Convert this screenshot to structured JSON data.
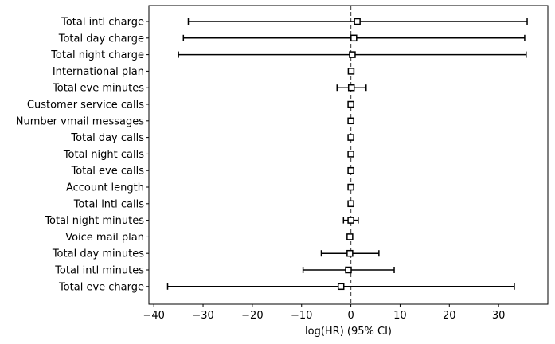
{
  "chart_data": {
    "type": "scatter",
    "title": "",
    "xlabel": "log(HR) (95% CI)",
    "ylabel": "",
    "xlim": [
      -41,
      40
    ],
    "xticks": [
      -40,
      -30,
      -20,
      -10,
      0,
      10,
      20,
      30
    ],
    "xtick_labels": [
      "−40",
      "−30",
      "−20",
      "−10",
      "0",
      "10",
      "20",
      "30"
    ],
    "reference_line": 0,
    "grid": false,
    "marker": "square",
    "series": [
      {
        "categories": [
          "Total intl charge",
          "Total day charge",
          "Total night charge",
          "International plan",
          "Total eve minutes",
          "Customer service calls",
          "Number vmail messages",
          "Total day calls",
          "Total night calls",
          "Total eve calls",
          "Account length",
          "Total intl calls",
          "Total night minutes",
          "Voice mail plan",
          "Total day minutes",
          "Total intl minutes",
          "Total eve charge"
        ],
        "estimate": [
          1.3,
          0.6,
          0.3,
          0.05,
          0.1,
          0.0,
          0.0,
          0.0,
          0.0,
          0.0,
          0.0,
          0.0,
          0.0,
          -0.2,
          -0.2,
          -0.5,
          -2.0
        ],
        "ci_lower": [
          -33.0,
          -34.0,
          -35.0,
          0.0,
          -2.8,
          0.0,
          0.0,
          0.0,
          0.0,
          0.0,
          0.0,
          0.0,
          -1.5,
          -0.5,
          -6.0,
          -9.7,
          -37.2
        ],
        "ci_upper": [
          35.8,
          35.3,
          35.6,
          0.1,
          3.1,
          0.0,
          0.0,
          0.0,
          0.0,
          0.0,
          0.0,
          0.0,
          1.5,
          0.1,
          5.7,
          8.8,
          33.2
        ]
      }
    ]
  }
}
